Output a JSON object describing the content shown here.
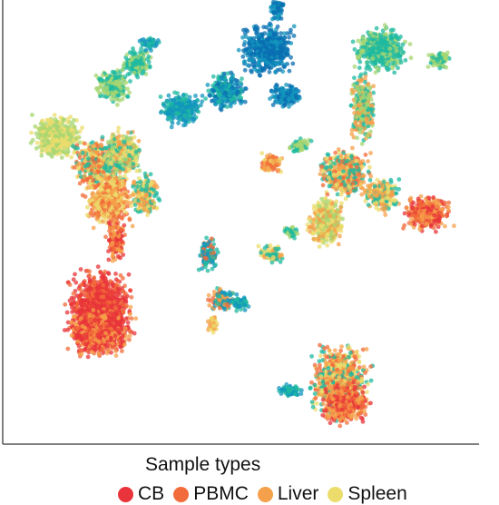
{
  "chart_data": {
    "type": "scatter",
    "title": "",
    "xlabel": "",
    "ylabel": "",
    "legend_title": "Sample types",
    "legend_position": "bottom",
    "grid": false,
    "series": [
      {
        "name": "CB",
        "color": "#e8343a"
      },
      {
        "name": "PBMC",
        "color": "#f26b3a"
      },
      {
        "name": "Liver",
        "color": "#f5a04a"
      },
      {
        "name": "Spleen",
        "color": "#ecdc6c"
      }
    ],
    "extra_colors": [
      "#a7d672",
      "#1fb9a0",
      "#1396bd",
      "#0a6fb1"
    ],
    "clusters": [
      {
        "cx": 62,
        "cy": 150,
        "rx": 20,
        "ry": 17,
        "c": [
          3,
          4
        ]
      },
      {
        "cx": 125,
        "cy": 95,
        "rx": 14,
        "ry": 14,
        "c": [
          4,
          5
        ]
      },
      {
        "cx": 150,
        "cy": 70,
        "rx": 12,
        "ry": 12,
        "c": [
          5,
          5,
          4
        ]
      },
      {
        "cx": 165,
        "cy": 48,
        "rx": 8,
        "ry": 6,
        "c": [
          5,
          6
        ]
      },
      {
        "cx": 200,
        "cy": 120,
        "rx": 18,
        "ry": 14,
        "c": [
          6,
          6,
          5
        ]
      },
      {
        "cx": 250,
        "cy": 100,
        "rx": 16,
        "ry": 15,
        "c": [
          6,
          7,
          5
        ]
      },
      {
        "cx": 295,
        "cy": 55,
        "rx": 22,
        "ry": 22,
        "c": [
          7,
          7,
          6
        ]
      },
      {
        "cx": 305,
        "cy": 10,
        "rx": 6,
        "ry": 10,
        "c": [
          6,
          7
        ]
      },
      {
        "cx": 315,
        "cy": 105,
        "rx": 14,
        "ry": 10,
        "c": [
          6,
          7
        ]
      },
      {
        "cx": 105,
        "cy": 180,
        "rx": 18,
        "ry": 20,
        "c": [
          5,
          2,
          1,
          3
        ]
      },
      {
        "cx": 135,
        "cy": 170,
        "rx": 16,
        "ry": 20,
        "c": [
          5,
          3,
          2,
          4
        ]
      },
      {
        "cx": 120,
        "cy": 220,
        "rx": 20,
        "ry": 22,
        "c": [
          1,
          2,
          3
        ]
      },
      {
        "cx": 160,
        "cy": 215,
        "rx": 12,
        "ry": 18,
        "c": [
          2,
          3,
          5
        ]
      },
      {
        "cx": 128,
        "cy": 265,
        "rx": 8,
        "ry": 18,
        "c": [
          0,
          1,
          2
        ]
      },
      {
        "cx": 110,
        "cy": 340,
        "rx": 26,
        "ry": 32,
        "c": [
          0,
          0,
          1
        ]
      },
      {
        "cx": 110,
        "cy": 365,
        "rx": 26,
        "ry": 22,
        "c": [
          0,
          0,
          1,
          2
        ]
      },
      {
        "cx": 420,
        "cy": 55,
        "rx": 22,
        "ry": 18,
        "c": [
          5,
          5,
          4
        ]
      },
      {
        "cx": 485,
        "cy": 65,
        "rx": 10,
        "ry": 8,
        "c": [
          5,
          4
        ]
      },
      {
        "cx": 400,
        "cy": 120,
        "rx": 10,
        "ry": 30,
        "c": [
          5,
          4,
          2
        ]
      },
      {
        "cx": 380,
        "cy": 190,
        "rx": 20,
        "ry": 20,
        "c": [
          2,
          3,
          5,
          1
        ]
      },
      {
        "cx": 360,
        "cy": 245,
        "rx": 16,
        "ry": 20,
        "c": [
          2,
          3,
          4
        ]
      },
      {
        "cx": 420,
        "cy": 215,
        "rx": 16,
        "ry": 14,
        "c": [
          2,
          3,
          5
        ]
      },
      {
        "cx": 470,
        "cy": 235,
        "rx": 20,
        "ry": 14,
        "c": [
          0,
          1,
          2
        ]
      },
      {
        "cx": 300,
        "cy": 180,
        "rx": 10,
        "ry": 8,
        "c": [
          1,
          2,
          3
        ]
      },
      {
        "cx": 330,
        "cy": 160,
        "rx": 10,
        "ry": 6,
        "c": [
          5,
          4
        ]
      },
      {
        "cx": 300,
        "cy": 280,
        "rx": 10,
        "ry": 8,
        "c": [
          2,
          3,
          5
        ]
      },
      {
        "cx": 320,
        "cy": 255,
        "rx": 6,
        "ry": 6,
        "c": [
          5,
          4
        ]
      },
      {
        "cx": 230,
        "cy": 280,
        "rx": 8,
        "ry": 14,
        "c": [
          6,
          5,
          1
        ]
      },
      {
        "cx": 245,
        "cy": 330,
        "rx": 12,
        "ry": 10,
        "c": [
          5,
          1,
          6,
          2
        ]
      },
      {
        "cx": 265,
        "cy": 335,
        "rx": 8,
        "ry": 6,
        "c": [
          5,
          6
        ]
      },
      {
        "cx": 235,
        "cy": 355,
        "rx": 4,
        "ry": 8,
        "c": [
          3,
          2
        ]
      },
      {
        "cx": 375,
        "cy": 420,
        "rx": 24,
        "ry": 30,
        "c": [
          1,
          2,
          3,
          5
        ]
      },
      {
        "cx": 380,
        "cy": 445,
        "rx": 20,
        "ry": 18,
        "c": [
          0,
          1,
          2
        ]
      },
      {
        "cx": 320,
        "cy": 430,
        "rx": 12,
        "ry": 5,
        "c": [
          5,
          6
        ]
      }
    ]
  }
}
